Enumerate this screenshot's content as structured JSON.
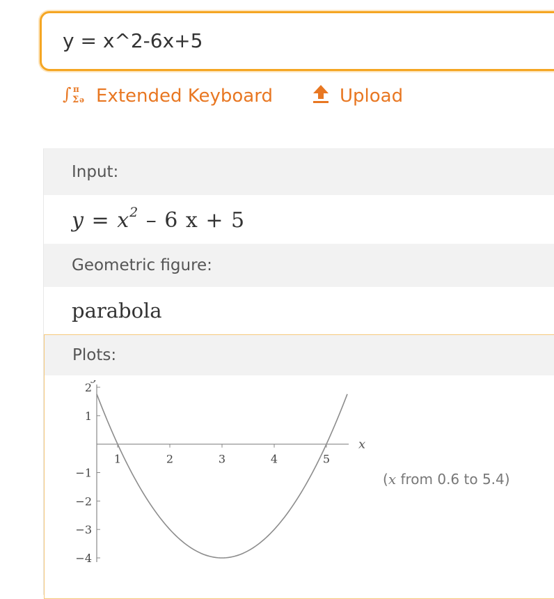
{
  "search": {
    "query": "y = x^2-6x+5"
  },
  "toolbar": {
    "extended_keyboard_label": "Extended Keyboard",
    "upload_label": "Upload"
  },
  "pods": {
    "input": {
      "title": "Input:",
      "formula_lhs": "y",
      "formula_base": "x",
      "formula_exp": "2",
      "formula_rest": "– 6 x + 5"
    },
    "geometric": {
      "title": "Geometric figure:",
      "value": "parabola"
    },
    "plots": {
      "title": "Plots:",
      "range_var": "x",
      "range_text": " from 0.6 to 5.4)"
    }
  },
  "colors": {
    "accent": "#e87722",
    "search_border": "#f5a623",
    "plot_border": "#f7c97b"
  },
  "chart_data": {
    "type": "line",
    "function": "x^2-6x+5",
    "xlim": [
      0.6,
      5.4
    ],
    "ylim": [
      -4,
      2
    ],
    "xlabel": "x",
    "ylabel": "y",
    "xticks": [
      "1",
      "2",
      "3",
      "4",
      "5"
    ],
    "yticks": [
      "2",
      "1",
      "-1",
      "-2",
      "-3",
      "-4"
    ],
    "series": [
      {
        "x": [
          0.6,
          1,
          1.5,
          2,
          2.5,
          3,
          3.5,
          4,
          4.5,
          5,
          5.4
        ],
        "y": [
          1.76,
          0,
          -1.75,
          -3,
          -3.75,
          -4,
          -3.75,
          -3,
          -1.75,
          0,
          1.76
        ]
      }
    ],
    "grid": false
  }
}
